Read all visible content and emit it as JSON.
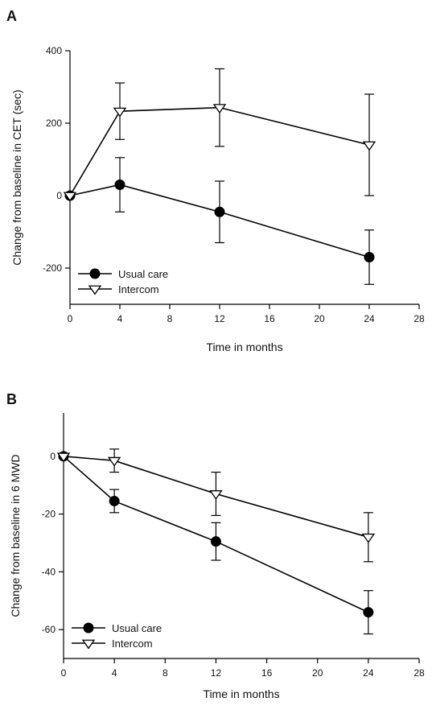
{
  "chart_data": [
    {
      "type": "line",
      "panel": "A",
      "xlabel": "Time in months",
      "ylabel": "Change from baseline in CET (sec)",
      "xlim": [
        0,
        28
      ],
      "ylim": [
        -300,
        400
      ],
      "xticks": [
        0,
        4,
        8,
        12,
        16,
        20,
        24,
        28
      ],
      "yticks": [
        -200,
        0,
        200,
        400
      ],
      "grid": false,
      "legend": "bottom-left",
      "series": [
        {
          "name": "Usual care",
          "marker": "filled-circle",
          "x": [
            0,
            4,
            12,
            24
          ],
          "y": [
            0,
            30,
            -45,
            -170
          ],
          "err_low": [
            0,
            75,
            85,
            75
          ],
          "err_high": [
            0,
            75,
            85,
            75
          ]
        },
        {
          "name": "Intercom",
          "marker": "open-triangle-down",
          "x": [
            0,
            4,
            12,
            24
          ],
          "y": [
            0,
            233,
            243,
            140
          ],
          "err_low": [
            0,
            78,
            107,
            140
          ],
          "err_high": [
            0,
            78,
            107,
            140
          ]
        }
      ]
    },
    {
      "type": "line",
      "panel": "B",
      "xlabel": "Time in months",
      "ylabel": "Change from baseline in 6 MWD",
      "xlim": [
        0,
        28
      ],
      "ylim": [
        -70,
        15
      ],
      "xticks": [
        0,
        4,
        8,
        12,
        16,
        20,
        24,
        28
      ],
      "yticks": [
        -60,
        -40,
        -20,
        0
      ],
      "grid": false,
      "legend": "bottom-left",
      "series": [
        {
          "name": "Usual care",
          "marker": "filled-circle",
          "x": [
            0,
            4,
            12,
            24
          ],
          "y": [
            0,
            -15.5,
            -29.5,
            -54
          ],
          "err_low": [
            0,
            4,
            6.5,
            7.5
          ],
          "err_high": [
            0,
            4,
            6.5,
            7.5
          ]
        },
        {
          "name": "Intercom",
          "marker": "open-triangle-down",
          "x": [
            0,
            4,
            12,
            24
          ],
          "y": [
            0,
            -1.5,
            -13,
            -28
          ],
          "err_low": [
            0,
            4,
            7.5,
            8.5
          ],
          "err_high": [
            0,
            4,
            7.5,
            8.5
          ]
        }
      ]
    }
  ]
}
